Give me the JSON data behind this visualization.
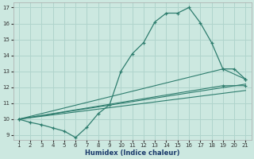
{
  "xlabel": "Humidex (Indice chaleur)",
  "background_color": "#cce8e0",
  "grid_color": "#b0d4cc",
  "line_color": "#2e7d6e",
  "xlim": [
    0.5,
    21.5
  ],
  "ylim": [
    8.7,
    17.3
  ],
  "xticks": [
    1,
    2,
    3,
    4,
    5,
    6,
    7,
    8,
    9,
    10,
    11,
    12,
    13,
    14,
    15,
    16,
    17,
    18,
    19,
    20,
    21
  ],
  "yticks": [
    9,
    10,
    11,
    12,
    13,
    14,
    15,
    16,
    17
  ],
  "curve1_x": [
    1,
    2,
    3,
    4,
    5,
    6,
    7,
    8,
    9,
    10,
    11,
    12,
    13,
    14,
    15,
    16,
    17,
    18,
    19,
    20,
    21
  ],
  "curve1_y": [
    10.0,
    9.8,
    9.65,
    9.45,
    9.25,
    8.85,
    9.5,
    10.35,
    10.9,
    13.0,
    14.1,
    14.8,
    16.1,
    16.65,
    16.65,
    17.0,
    16.05,
    14.8,
    13.15,
    13.15,
    12.5
  ],
  "line2_x": [
    1,
    19,
    21
  ],
  "line2_y": [
    10.0,
    13.15,
    12.5
  ],
  "line3_x": [
    1,
    19,
    21
  ],
  "line3_y": [
    10.0,
    12.1,
    12.1
  ],
  "line4_x": [
    1,
    21
  ],
  "line4_y": [
    10.0,
    12.2
  ],
  "line5_x": [
    1,
    21
  ],
  "line5_y": [
    10.0,
    11.8
  ]
}
